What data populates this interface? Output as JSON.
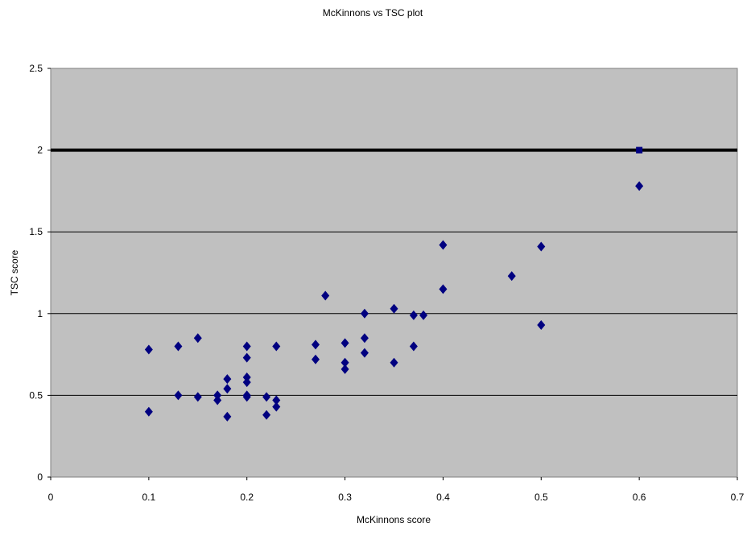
{
  "chart_data": {
    "type": "scatter",
    "title": "McKinnons vs TSC plot",
    "xlabel": "McKinnons score",
    "ylabel": "TSC score",
    "xlim": [
      0,
      0.7
    ],
    "ylim": [
      0,
      2.5
    ],
    "x_ticks": [
      0,
      0.1,
      0.2,
      0.3,
      0.4,
      0.5,
      0.6,
      0.7
    ],
    "x_tick_labels": [
      "0",
      "0.1",
      "0.2",
      "0.3",
      "0.4",
      "0.5",
      "0.6",
      "0.7"
    ],
    "y_ticks": [
      0,
      0.5,
      1,
      1.5,
      2,
      2.5
    ],
    "y_tick_labels": [
      "0",
      "0.5",
      "1",
      "1.5",
      "2",
      "2.5"
    ],
    "grid": "horizontal",
    "plot_background": "#c0c0c0",
    "marker_color": "#000080",
    "reference_line": {
      "y": 2
    },
    "series": [
      {
        "marker": "diamond",
        "points": [
          [
            0.1,
            0.78
          ],
          [
            0.1,
            0.4
          ],
          [
            0.13,
            0.8
          ],
          [
            0.13,
            0.5
          ],
          [
            0.15,
            0.85
          ],
          [
            0.15,
            0.49
          ],
          [
            0.17,
            0.5
          ],
          [
            0.17,
            0.47
          ],
          [
            0.18,
            0.6
          ],
          [
            0.18,
            0.54
          ],
          [
            0.18,
            0.37
          ],
          [
            0.2,
            0.8
          ],
          [
            0.2,
            0.73
          ],
          [
            0.2,
            0.61
          ],
          [
            0.2,
            0.58
          ],
          [
            0.2,
            0.5
          ],
          [
            0.2,
            0.49
          ],
          [
            0.22,
            0.49
          ],
          [
            0.22,
            0.38
          ],
          [
            0.23,
            0.8
          ],
          [
            0.23,
            0.47
          ],
          [
            0.23,
            0.43
          ],
          [
            0.27,
            0.81
          ],
          [
            0.27,
            0.72
          ],
          [
            0.28,
            1.11
          ],
          [
            0.3,
            0.82
          ],
          [
            0.3,
            0.7
          ],
          [
            0.3,
            0.66
          ],
          [
            0.32,
            1.0
          ],
          [
            0.32,
            0.85
          ],
          [
            0.32,
            0.76
          ],
          [
            0.35,
            1.03
          ],
          [
            0.35,
            0.7
          ],
          [
            0.37,
            0.99
          ],
          [
            0.37,
            0.8
          ],
          [
            0.38,
            0.99
          ],
          [
            0.4,
            1.42
          ],
          [
            0.4,
            1.15
          ],
          [
            0.47,
            1.23
          ],
          [
            0.5,
            1.41
          ],
          [
            0.5,
            0.93
          ],
          [
            0.6,
            1.78
          ]
        ]
      },
      {
        "marker": "square",
        "points": [
          [
            0.6,
            2.0
          ]
        ]
      }
    ]
  }
}
